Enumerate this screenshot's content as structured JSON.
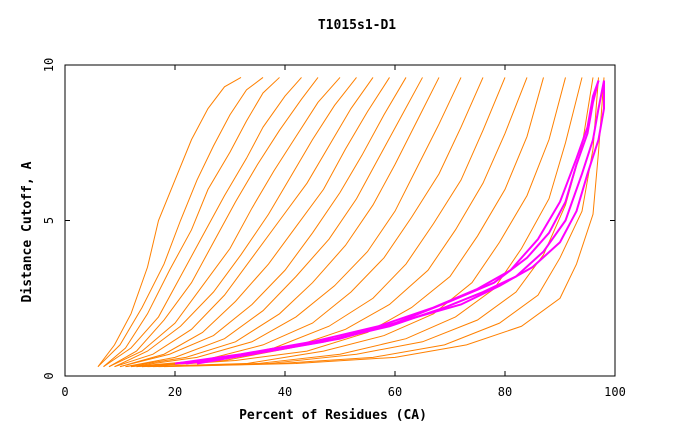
{
  "chart_data": {
    "type": "line",
    "title": "T1015s1-D1",
    "xlabel": "Percent of Residues (CA)",
    "ylabel": "Distance Cutoff, A",
    "xlim": [
      0,
      100
    ],
    "ylim": [
      0,
      10
    ],
    "xticks": [
      "0",
      "20",
      "40",
      "60",
      "80",
      "100"
    ],
    "yticks": [
      "0",
      "5",
      "10"
    ],
    "grid": false,
    "legend": "none",
    "colors": {
      "orange": "#ff8000",
      "magenta": "#ff00ff"
    },
    "series": [
      {
        "color": "#ff8000",
        "x": [
          6,
          9,
          12,
          15,
          17,
          20,
          23,
          26,
          29,
          32
        ],
        "y": [
          0.3,
          1.0,
          2.0,
          3.5,
          5.0,
          6.3,
          7.6,
          8.6,
          9.3,
          9.6
        ]
      },
      {
        "color": "#ff8000",
        "x": [
          6,
          10,
          14,
          18,
          21,
          24,
          27,
          30,
          33,
          36
        ],
        "y": [
          0.3,
          1.0,
          2.2,
          3.6,
          5.0,
          6.3,
          7.4,
          8.4,
          9.2,
          9.6
        ]
      },
      {
        "color": "#ff8000",
        "x": [
          7,
          11,
          15,
          19,
          23,
          26,
          30,
          33,
          36,
          39
        ],
        "y": [
          0.3,
          0.9,
          2.0,
          3.4,
          4.7,
          6.0,
          7.2,
          8.2,
          9.1,
          9.6
        ]
      },
      {
        "color": "#ff8000",
        "x": [
          7,
          12,
          17,
          21,
          25,
          29,
          33,
          36,
          40,
          43
        ],
        "y": [
          0.3,
          0.9,
          1.9,
          3.2,
          4.5,
          5.8,
          7.0,
          8.0,
          9.0,
          9.6
        ]
      },
      {
        "color": "#ff8000",
        "x": [
          8,
          13,
          18,
          23,
          27,
          31,
          35,
          39,
          43,
          46
        ],
        "y": [
          0.3,
          0.8,
          1.8,
          3.0,
          4.3,
          5.6,
          6.8,
          7.9,
          8.9,
          9.6
        ]
      },
      {
        "color": "#ff8000",
        "x": [
          8,
          14,
          20,
          25,
          30,
          34,
          38,
          42,
          46,
          50
        ],
        "y": [
          0.3,
          0.8,
          1.7,
          2.9,
          4.1,
          5.4,
          6.6,
          7.7,
          8.8,
          9.6
        ]
      },
      {
        "color": "#ff8000",
        "x": [
          9,
          15,
          21,
          27,
          32,
          37,
          41,
          45,
          49,
          53
        ],
        "y": [
          0.3,
          0.8,
          1.6,
          2.7,
          3.9,
          5.2,
          6.4,
          7.6,
          8.7,
          9.6
        ]
      },
      {
        "color": "#ff8000",
        "x": [
          9,
          16,
          23,
          29,
          34,
          39,
          44,
          48,
          52,
          56
        ],
        "y": [
          0.3,
          0.7,
          1.5,
          2.6,
          3.8,
          5.0,
          6.2,
          7.4,
          8.6,
          9.6
        ]
      },
      {
        "color": "#ff8000",
        "x": [
          10,
          18,
          25,
          31,
          37,
          42,
          47,
          51,
          55,
          59
        ],
        "y": [
          0.3,
          0.7,
          1.4,
          2.4,
          3.6,
          4.8,
          6.0,
          7.3,
          8.5,
          9.6
        ]
      },
      {
        "color": "#ff8000",
        "x": [
          10,
          19,
          27,
          34,
          40,
          45,
          50,
          54,
          58,
          62
        ],
        "y": [
          0.3,
          0.7,
          1.3,
          2.3,
          3.4,
          4.6,
          5.9,
          7.1,
          8.4,
          9.6
        ]
      },
      {
        "color": "#ff8000",
        "x": [
          11,
          20,
          29,
          36,
          42,
          48,
          53,
          57,
          61,
          65
        ],
        "y": [
          0.3,
          0.6,
          1.2,
          2.1,
          3.2,
          4.4,
          5.7,
          7.0,
          8.3,
          9.6
        ]
      },
      {
        "color": "#ff8000",
        "x": [
          11,
          22,
          31,
          39,
          45,
          51,
          56,
          60,
          64,
          68
        ],
        "y": [
          0.3,
          0.6,
          1.1,
          2.0,
          3.0,
          4.2,
          5.5,
          6.8,
          8.2,
          9.6
        ]
      },
      {
        "color": "#ff8000",
        "x": [
          12,
          24,
          34,
          42,
          49,
          55,
          60,
          64,
          68,
          72
        ],
        "y": [
          0.3,
          0.6,
          1.1,
          1.9,
          2.9,
          4.0,
          5.3,
          6.7,
          8.1,
          9.6
        ]
      },
      {
        "color": "#ff8000",
        "x": [
          12,
          25,
          36,
          45,
          52,
          58,
          63,
          68,
          72,
          76
        ],
        "y": [
          0.3,
          0.5,
          1.0,
          1.7,
          2.7,
          3.8,
          5.1,
          6.5,
          8.0,
          9.6
        ]
      },
      {
        "color": "#ff8000",
        "x": [
          13,
          27,
          38,
          48,
          56,
          62,
          67,
          72,
          76,
          80
        ],
        "y": [
          0.3,
          0.5,
          0.9,
          1.6,
          2.5,
          3.6,
          4.9,
          6.3,
          7.9,
          9.6
        ]
      },
      {
        "color": "#ff8000",
        "x": [
          13,
          29,
          41,
          51,
          59,
          66,
          71,
          76,
          80,
          84
        ],
        "y": [
          0.3,
          0.5,
          0.9,
          1.5,
          2.3,
          3.4,
          4.7,
          6.2,
          7.8,
          9.6
        ]
      },
      {
        "color": "#ff8000",
        "x": [
          14,
          31,
          44,
          55,
          63,
          70,
          75,
          80,
          84,
          87
        ],
        "y": [
          0.3,
          0.5,
          0.8,
          1.4,
          2.2,
          3.2,
          4.5,
          6.0,
          7.7,
          9.6
        ]
      },
      {
        "color": "#ff8000",
        "x": [
          14,
          33,
          47,
          58,
          67,
          74,
          79,
          84,
          88,
          91
        ],
        "y": [
          0.3,
          0.4,
          0.8,
          1.3,
          2.0,
          3.0,
          4.3,
          5.8,
          7.6,
          9.6
        ]
      },
      {
        "color": "#ff8000",
        "x": [
          15,
          35,
          50,
          62,
          71,
          78,
          83,
          88,
          91,
          94
        ],
        "y": [
          0.3,
          0.4,
          0.7,
          1.2,
          1.9,
          2.8,
          4.1,
          5.7,
          7.5,
          9.6
        ]
      },
      {
        "color": "#ff8000",
        "x": [
          16,
          37,
          53,
          65,
          75,
          82,
          87,
          91,
          94,
          96
        ],
        "y": [
          0.3,
          0.4,
          0.7,
          1.1,
          1.8,
          2.7,
          3.9,
          5.5,
          7.4,
          9.6
        ]
      },
      {
        "color": "#ff8000",
        "x": [
          17,
          39,
          56,
          69,
          79,
          86,
          90,
          94,
          96,
          97
        ],
        "y": [
          0.3,
          0.4,
          0.6,
          1.0,
          1.7,
          2.6,
          3.8,
          5.3,
          7.3,
          9.6
        ]
      },
      {
        "color": "#ff8000",
        "x": [
          18,
          42,
          60,
          73,
          83,
          90,
          93,
          96,
          97,
          98
        ],
        "y": [
          0.3,
          0.4,
          0.6,
          1.0,
          1.6,
          2.5,
          3.6,
          5.2,
          7.2,
          9.6
        ]
      },
      {
        "color": "#ff00ff",
        "x": [
          20,
          32,
          45,
          57,
          67,
          75,
          81,
          86,
          90,
          93,
          95,
          96,
          97
        ],
        "y": [
          0.4,
          0.7,
          1.1,
          1.6,
          2.2,
          2.8,
          3.4,
          4.4,
          5.6,
          7.0,
          8.0,
          9.0,
          9.5
        ]
      },
      {
        "color": "#ff00ff",
        "x": [
          22,
          34,
          47,
          59,
          69,
          76,
          82,
          87,
          91,
          94,
          96,
          97,
          98
        ],
        "y": [
          0.4,
          0.7,
          1.1,
          1.6,
          2.2,
          2.7,
          3.2,
          4.0,
          5.0,
          6.5,
          7.6,
          8.6,
          9.5
        ]
      },
      {
        "color": "#ff00ff",
        "x": [
          24,
          37,
          50,
          62,
          72,
          79,
          85,
          90,
          93,
          95,
          97,
          98,
          98
        ],
        "y": [
          0.4,
          0.8,
          1.2,
          1.8,
          2.3,
          2.9,
          3.5,
          4.3,
          5.3,
          6.5,
          7.6,
          8.6,
          9.5
        ]
      },
      {
        "color": "#ff00ff",
        "x": [
          21,
          36,
          49,
          60,
          70,
          78,
          84,
          88,
          91,
          93,
          95,
          96,
          97
        ],
        "y": [
          0.4,
          0.8,
          1.2,
          1.7,
          2.4,
          3.0,
          3.8,
          4.6,
          5.6,
          6.8,
          7.8,
          8.8,
          9.5
        ]
      }
    ]
  }
}
